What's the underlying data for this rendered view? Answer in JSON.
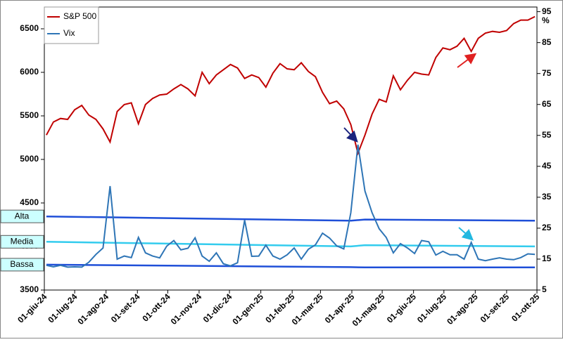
{
  "chart_data": {
    "type": "line",
    "xlim": [
      "2024-06-01",
      "2025-10-01"
    ],
    "xticks": [
      {
        "value": "2024-06-01",
        "label": "01-giu-24"
      },
      {
        "value": "2024-07-01",
        "label": "01-lug-24"
      },
      {
        "value": "2024-08-01",
        "label": "01-ago-24"
      },
      {
        "value": "2024-09-01",
        "label": "01-set-24"
      },
      {
        "value": "2024-10-01",
        "label": "01-ott-24"
      },
      {
        "value": "2024-11-01",
        "label": "01-nov-24"
      },
      {
        "value": "2024-12-01",
        "label": "01-dic-24"
      },
      {
        "value": "2025-01-01",
        "label": "01-gen-25"
      },
      {
        "value": "2025-02-01",
        "label": "01-feb-25"
      },
      {
        "value": "2025-03-01",
        "label": "01-mar-25"
      },
      {
        "value": "2025-04-01",
        "label": "01-apr-25"
      },
      {
        "value": "2025-05-01",
        "label": "01-mag-25"
      },
      {
        "value": "2025-06-01",
        "label": "01-giu-25"
      },
      {
        "value": "2025-07-01",
        "label": "01-lug-25"
      },
      {
        "value": "2025-08-01",
        "label": "01-ago-25"
      },
      {
        "value": "2025-09-01",
        "label": "01-set-25"
      },
      {
        "value": "2025-10-01",
        "label": "01-ott-25"
      }
    ],
    "ylim": [
      3500,
      6750
    ],
    "yticks": [
      3500,
      4000,
      4500,
      5000,
      5500,
      6000,
      6500
    ],
    "y2lim": [
      5,
      96.5
    ],
    "y2ticks": [
      5,
      15,
      25,
      35,
      45,
      55,
      65,
      75,
      85,
      95
    ],
    "y2label": "%",
    "x": [
      "2024-06-03",
      "2024-06-10",
      "2024-06-17",
      "2024-06-24",
      "2024-07-01",
      "2024-07-08",
      "2024-07-15",
      "2024-07-22",
      "2024-07-29",
      "2024-08-05",
      "2024-08-12",
      "2024-08-19",
      "2024-08-26",
      "2024-09-02",
      "2024-09-09",
      "2024-09-16",
      "2024-09-23",
      "2024-09-30",
      "2024-10-07",
      "2024-10-14",
      "2024-10-21",
      "2024-10-28",
      "2024-11-04",
      "2024-11-11",
      "2024-11-18",
      "2024-11-25",
      "2024-12-02",
      "2024-12-09",
      "2024-12-16",
      "2024-12-23",
      "2024-12-30",
      "2025-01-06",
      "2025-01-13",
      "2025-01-20",
      "2025-01-27",
      "2025-02-03",
      "2025-02-10",
      "2025-02-17",
      "2025-02-24",
      "2025-03-03",
      "2025-03-10",
      "2025-03-17",
      "2025-03-24",
      "2025-03-31",
      "2025-04-07",
      "2025-04-14",
      "2025-04-21",
      "2025-04-28",
      "2025-05-05",
      "2025-05-12",
      "2025-05-19",
      "2025-05-26",
      "2025-06-02",
      "2025-06-09",
      "2025-06-16",
      "2025-06-23",
      "2025-06-30",
      "2025-07-07",
      "2025-07-14",
      "2025-07-21",
      "2025-07-28",
      "2025-08-04",
      "2025-08-11",
      "2025-08-18",
      "2025-08-25",
      "2025-09-01",
      "2025-09-08",
      "2025-09-15",
      "2025-09-22",
      "2025-09-29"
    ],
    "series": [
      {
        "name": "S&P 500",
        "color": "#c00000",
        "values": [
          5280,
          5430,
          5470,
          5460,
          5570,
          5620,
          5510,
          5460,
          5350,
          5200,
          5550,
          5630,
          5650,
          5410,
          5630,
          5700,
          5740,
          5750,
          5810,
          5860,
          5810,
          5730,
          6000,
          5870,
          5970,
          6030,
          6090,
          6050,
          5930,
          5970,
          5940,
          5830,
          5990,
          6100,
          6040,
          6030,
          6110,
          6010,
          5950,
          5770,
          5640,
          5670,
          5580,
          5400,
          5070,
          5280,
          5520,
          5690,
          5660,
          5960,
          5800,
          5910,
          6000,
          5980,
          5970,
          6170,
          6280,
          6260,
          6300,
          6390,
          6240,
          6390,
          6450,
          6470,
          6460,
          6480,
          6560,
          6600,
          6600,
          6640
        ]
      },
      {
        "name": "Vix",
        "color": "#2e75b6",
        "axis": "y2",
        "values": [
          13,
          12.5,
          13,
          12.4,
          12.5,
          12.4,
          14,
          16.5,
          18.6,
          38.6,
          15,
          16,
          15.5,
          22,
          17,
          16,
          15.4,
          19.2,
          21,
          18,
          18.5,
          21.9,
          16,
          14.3,
          17,
          13.5,
          12.8,
          13.8,
          27.6,
          15.9,
          16,
          19.5,
          16,
          15,
          16.4,
          18.6,
          15,
          18.2,
          19.6,
          23.4,
          21.8,
          19.3,
          18.3,
          30,
          52,
          37,
          30,
          24.8,
          22,
          17,
          20,
          18.6,
          16.8,
          21,
          20.6,
          16.3,
          17.5,
          16.4,
          16.4,
          15,
          20.4,
          15,
          14.5,
          15,
          15.4,
          15,
          14.8,
          15.5,
          16.7,
          16.5
        ]
      }
    ],
    "bands": [
      {
        "name": "Alta",
        "color": "#1f4fd8",
        "axis": "y2",
        "x": [
          "2024-06-03",
          "2025-03-31",
          "2025-04-14",
          "2025-09-29"
        ],
        "values": [
          28.8,
          27.4,
          27.8,
          27.4
        ]
      },
      {
        "name": "Media",
        "color": "#33ccee",
        "axis": "y2",
        "x": [
          "2024-06-03",
          "2025-03-31",
          "2025-04-14",
          "2025-09-29"
        ],
        "values": [
          20.6,
          19.1,
          19.5,
          19.1
        ]
      },
      {
        "name": "Bassa",
        "color": "#1f4fd8",
        "axis": "y2",
        "x": [
          "2024-06-03",
          "2025-03-31",
          "2025-04-14",
          "2025-09-29"
        ],
        "values": [
          13.2,
          12.4,
          12.3,
          12.3
        ]
      }
    ]
  }
}
